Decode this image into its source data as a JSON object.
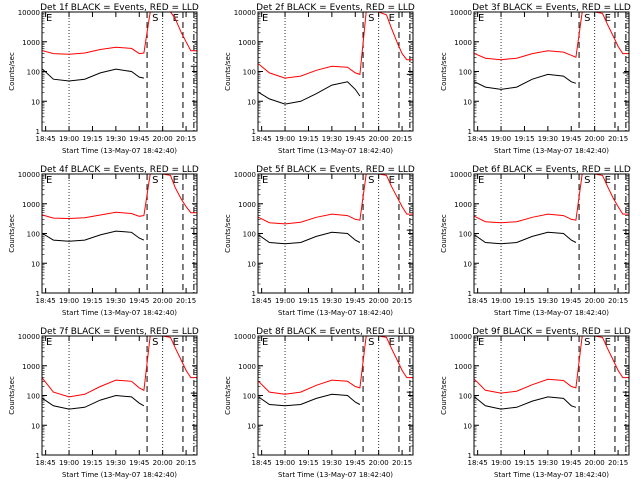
{
  "colors": {
    "events": "#000000",
    "lld": "#ff0000",
    "axes": "#000000",
    "background": "#ffffff"
  },
  "common": {
    "ylabel": "Counts/sec",
    "xlabel": "Start Time (13-May-07 18:42:40)",
    "x_ticks": [
      "18:45",
      "19:00",
      "19:15",
      "19:30",
      "19:45",
      "20:00",
      "20:15"
    ],
    "y_ticks": [
      "1",
      "10",
      "100",
      "1000",
      "10000"
    ],
    "letters": [
      "E",
      "S",
      "E"
    ]
  },
  "chart_data": [
    {
      "type": "line",
      "title": "Det 1f BLACK = Events, RED = LLD",
      "y_scale": "log",
      "xlim": [
        "18:42:40",
        "20:22:00"
      ],
      "ylim": [
        1,
        10000
      ],
      "x": [
        "18:43",
        "18:50",
        "19:00",
        "19:10",
        "19:20",
        "19:30",
        "19:40",
        "19:45",
        "19:48",
        "19:52",
        "19:55",
        "20:00",
        "20:05",
        "20:08",
        "20:12",
        "20:15",
        "20:18",
        "20:22"
      ],
      "series": [
        {
          "name": "Events",
          "values": [
            120,
            55,
            48,
            55,
            90,
            120,
            100,
            65,
            60,
            null,
            null,
            null,
            null,
            null,
            null,
            null,
            150,
            150
          ]
        },
        {
          "name": "LLD",
          "values": [
            500,
            400,
            380,
            420,
            550,
            650,
            600,
            400,
            420,
            10000,
            10000,
            10000,
            10000,
            6000,
            2000,
            1000,
            500,
            500
          ]
        }
      ],
      "vlines": {
        "dotted": [
          "19:00",
          "20:00"
        ],
        "dashed": [
          "19:50",
          "20:13"
        ],
        "dashdot": [
          "20:20"
        ]
      }
    },
    {
      "type": "line",
      "title": "Det 2f BLACK = Events, RED = LLD",
      "y_scale": "log",
      "xlim": [
        "18:42:40",
        "20:22:00"
      ],
      "ylim": [
        1,
        10000
      ],
      "x": [
        "18:43",
        "18:50",
        "19:00",
        "19:10",
        "19:20",
        "19:30",
        "19:40",
        "19:45",
        "19:48",
        "19:52",
        "19:55",
        "20:00",
        "20:05",
        "20:08",
        "20:12",
        "20:15",
        "20:18",
        "20:22"
      ],
      "series": [
        {
          "name": "Events",
          "values": [
            20,
            12,
            8,
            10,
            18,
            35,
            45,
            25,
            15,
            null,
            null,
            null,
            null,
            null,
            null,
            null,
            80,
            80
          ]
        },
        {
          "name": "LLD",
          "values": [
            180,
            90,
            60,
            70,
            110,
            150,
            140,
            90,
            80,
            10000,
            10000,
            10000,
            8000,
            3000,
            900,
            400,
            250,
            250
          ]
        }
      ],
      "vlines": {
        "dotted": [
          "19:00",
          "20:00"
        ],
        "dashed": [
          "19:50",
          "20:13"
        ],
        "dashdot": [
          "20:20"
        ]
      }
    },
    {
      "type": "line",
      "title": "Det 3f BLACK = Events, RED = LLD",
      "y_scale": "log",
      "xlim": [
        "18:42:40",
        "20:22:00"
      ],
      "ylim": [
        1,
        10000
      ],
      "x": [
        "18:43",
        "18:50",
        "19:00",
        "19:10",
        "19:20",
        "19:30",
        "19:40",
        "19:45",
        "19:48",
        "19:52",
        "19:55",
        "20:00",
        "20:05",
        "20:08",
        "20:12",
        "20:15",
        "20:18",
        "20:22"
      ],
      "series": [
        {
          "name": "Events",
          "values": [
            45,
            30,
            25,
            30,
            55,
            80,
            70,
            45,
            40,
            null,
            null,
            null,
            null,
            null,
            null,
            null,
            90,
            90
          ]
        },
        {
          "name": "LLD",
          "values": [
            400,
            280,
            250,
            280,
            400,
            500,
            450,
            350,
            300,
            10000,
            10000,
            10000,
            9000,
            4000,
            1500,
            700,
            400,
            400
          ]
        }
      ],
      "vlines": {
        "dotted": [
          "19:00",
          "20:00"
        ],
        "dashed": [
          "19:50",
          "20:13"
        ],
        "dashdot": [
          "20:20"
        ]
      }
    },
    {
      "type": "line",
      "title": "Det 4f BLACK = Events, RED = LLD",
      "y_scale": "log",
      "xlim": [
        "18:42:40",
        "20:22:00"
      ],
      "ylim": [
        1,
        10000
      ],
      "x": [
        "18:43",
        "18:50",
        "19:00",
        "19:10",
        "19:20",
        "19:30",
        "19:40",
        "19:45",
        "19:48",
        "19:52",
        "19:55",
        "20:00",
        "20:05",
        "20:08",
        "20:12",
        "20:15",
        "20:18",
        "20:22"
      ],
      "series": [
        {
          "name": "Events",
          "values": [
            100,
            60,
            55,
            60,
            90,
            120,
            110,
            70,
            60,
            null,
            null,
            null,
            null,
            null,
            null,
            null,
            150,
            150
          ]
        },
        {
          "name": "LLD",
          "values": [
            420,
            330,
            320,
            340,
            420,
            520,
            470,
            380,
            400,
            10000,
            10000,
            10000,
            9000,
            3500,
            1400,
            800,
            500,
            500
          ]
        }
      ],
      "vlines": {
        "dotted": [
          "19:00",
          "20:00"
        ],
        "dashed": [
          "19:50",
          "20:13"
        ],
        "dashdot": [
          "20:20"
        ]
      }
    },
    {
      "type": "line",
      "title": "Det 5f BLACK = Events, RED = LLD",
      "y_scale": "log",
      "xlim": [
        "18:42:40",
        "20:22:00"
      ],
      "ylim": [
        1,
        10000
      ],
      "x": [
        "18:43",
        "18:50",
        "19:00",
        "19:10",
        "19:20",
        "19:30",
        "19:40",
        "19:45",
        "19:48",
        "19:52",
        "19:55",
        "20:00",
        "20:05",
        "20:08",
        "20:12",
        "20:15",
        "20:18",
        "20:22"
      ],
      "series": [
        {
          "name": "Events",
          "values": [
            90,
            50,
            45,
            50,
            80,
            110,
            100,
            60,
            50,
            null,
            null,
            null,
            null,
            null,
            null,
            null,
            130,
            130
          ]
        },
        {
          "name": "LLD",
          "values": [
            350,
            230,
            210,
            240,
            350,
            450,
            400,
            300,
            280,
            10000,
            10000,
            10000,
            9000,
            4000,
            1600,
            800,
            450,
            450
          ]
        }
      ],
      "vlines": {
        "dotted": [
          "19:00",
          "20:00"
        ],
        "dashed": [
          "19:50",
          "20:13"
        ],
        "dashdot": [
          "20:20"
        ]
      }
    },
    {
      "type": "line",
      "title": "Det 6f BLACK = Events, RED = LLD",
      "y_scale": "log",
      "xlim": [
        "18:42:40",
        "20:22:00"
      ],
      "ylim": [
        1,
        10000
      ],
      "x": [
        "18:43",
        "18:50",
        "19:00",
        "19:10",
        "19:20",
        "19:30",
        "19:40",
        "19:45",
        "19:48",
        "19:52",
        "19:55",
        "20:00",
        "20:05",
        "20:08",
        "20:12",
        "20:15",
        "20:18",
        "20:22"
      ],
      "series": [
        {
          "name": "Events",
          "values": [
            90,
            50,
            45,
            50,
            80,
            110,
            100,
            60,
            50,
            null,
            null,
            null,
            null,
            null,
            null,
            null,
            130,
            130
          ]
        },
        {
          "name": "LLD",
          "values": [
            380,
            250,
            230,
            250,
            350,
            450,
            400,
            300,
            280,
            10000,
            10000,
            10000,
            9000,
            4000,
            1500,
            800,
            450,
            450
          ]
        }
      ],
      "vlines": {
        "dotted": [
          "19:00",
          "20:00"
        ],
        "dashed": [
          "19:50",
          "20:13"
        ],
        "dashdot": [
          "20:20"
        ]
      }
    },
    {
      "type": "line",
      "title": "Det 7f BLACK = Events, RED = LLD",
      "y_scale": "log",
      "xlim": [
        "18:42:40",
        "20:22:00"
      ],
      "ylim": [
        1,
        10000
      ],
      "x": [
        "18:43",
        "18:50",
        "19:00",
        "19:10",
        "19:20",
        "19:30",
        "19:40",
        "19:45",
        "19:48",
        "19:52",
        "19:55",
        "20:00",
        "20:05",
        "20:08",
        "20:12",
        "20:15",
        "20:18",
        "20:22"
      ],
      "series": [
        {
          "name": "Events",
          "values": [
            80,
            45,
            35,
            40,
            70,
            100,
            90,
            55,
            45,
            null,
            null,
            null,
            null,
            null,
            null,
            null,
            120,
            120
          ]
        },
        {
          "name": "LLD",
          "values": [
            380,
            130,
            90,
            110,
            200,
            330,
            300,
            180,
            150,
            10000,
            10000,
            10000,
            9000,
            4000,
            1500,
            700,
            400,
            400
          ]
        }
      ],
      "vlines": {
        "dotted": [
          "19:00",
          "20:00"
        ],
        "dashed": [
          "19:50",
          "20:13"
        ],
        "dashdot": [
          "20:20"
        ]
      }
    },
    {
      "type": "line",
      "title": "Det 8f BLACK = Events, RED = LLD",
      "y_scale": "log",
      "xlim": [
        "18:42:40",
        "20:22:00"
      ],
      "ylim": [
        1,
        10000
      ],
      "x": [
        "18:43",
        "18:50",
        "19:00",
        "19:10",
        "19:20",
        "19:30",
        "19:40",
        "19:45",
        "19:48",
        "19:52",
        "19:55",
        "20:00",
        "20:05",
        "20:08",
        "20:12",
        "20:15",
        "20:18",
        "20:22"
      ],
      "series": [
        {
          "name": "Events",
          "values": [
            90,
            50,
            45,
            50,
            80,
            110,
            100,
            60,
            50,
            null,
            null,
            null,
            null,
            null,
            null,
            null,
            130,
            130
          ]
        },
        {
          "name": "LLD",
          "values": [
            300,
            130,
            110,
            130,
            220,
            330,
            300,
            200,
            180,
            10000,
            10000,
            10000,
            9000,
            4000,
            1500,
            700,
            400,
            400
          ]
        }
      ],
      "vlines": {
        "dotted": [
          "19:00",
          "20:00"
        ],
        "dashed": [
          "19:50",
          "20:13"
        ],
        "dashdot": [
          "20:20"
        ]
      }
    },
    {
      "type": "line",
      "title": "Det 9f BLACK = Events, RED = LLD",
      "y_scale": "log",
      "xlim": [
        "18:42:40",
        "20:22:00"
      ],
      "ylim": [
        1,
        10000
      ],
      "x": [
        "18:43",
        "18:50",
        "19:00",
        "19:10",
        "19:20",
        "19:30",
        "19:40",
        "19:45",
        "19:48",
        "19:52",
        "19:55",
        "20:00",
        "20:05",
        "20:08",
        "20:12",
        "20:15",
        "20:18",
        "20:22"
      ],
      "series": [
        {
          "name": "Events",
          "values": [
            90,
            45,
            35,
            40,
            65,
            90,
            80,
            45,
            40,
            null,
            null,
            null,
            null,
            null,
            null,
            null,
            130,
            130
          ]
        },
        {
          "name": "LLD",
          "values": [
            350,
            150,
            120,
            140,
            230,
            350,
            320,
            200,
            180,
            10000,
            10000,
            10000,
            9000,
            4000,
            1500,
            700,
            400,
            400
          ]
        }
      ],
      "vlines": {
        "dotted": [
          "19:00",
          "20:00"
        ],
        "dashed": [
          "19:50",
          "20:13"
        ],
        "dashdot": [
          "20:20"
        ]
      }
    }
  ]
}
